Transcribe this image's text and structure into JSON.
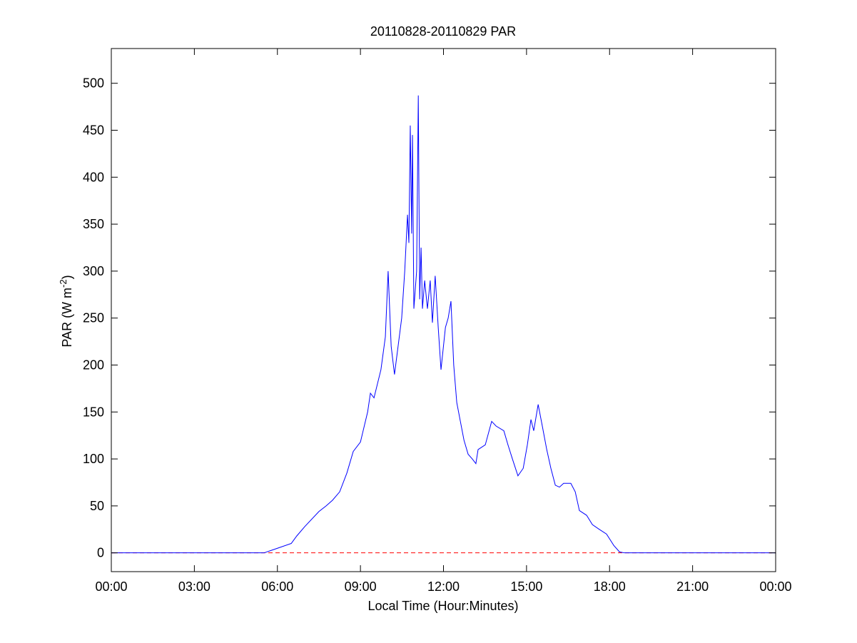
{
  "chart_data": {
    "type": "line",
    "title": "20110828-20110829 PAR",
    "xlabel": "Local Time (Hour:Minutes)",
    "ylabel": [
      "PAR (W m",
      "-2",
      ")"
    ],
    "xlim": [
      0,
      24
    ],
    "ylim": [
      -20,
      537
    ],
    "xticks": [
      {
        "value": 0,
        "label": "00:00"
      },
      {
        "value": 3,
        "label": "03:00"
      },
      {
        "value": 6,
        "label": "06:00"
      },
      {
        "value": 9,
        "label": "09:00"
      },
      {
        "value": 12,
        "label": "12:00"
      },
      {
        "value": 15,
        "label": "15:00"
      },
      {
        "value": 18,
        "label": "18:00"
      },
      {
        "value": 21,
        "label": "21:00"
      },
      {
        "value": 24,
        "label": "00:00"
      }
    ],
    "yticks": [
      0,
      50,
      100,
      150,
      200,
      250,
      300,
      350,
      400,
      450,
      500
    ],
    "reference_line": {
      "value": 0,
      "color": "#ff0000",
      "style": "dashed"
    },
    "series": [
      {
        "color": "#0000ff",
        "x": [
          0,
          5.52,
          6.01,
          6.5,
          6.7,
          6.99,
          7.5,
          7.76,
          7.99,
          8.25,
          8.51,
          8.74,
          9.0,
          9.26,
          9.36,
          9.49,
          9.74,
          9.9,
          10.0,
          10.11,
          10.23,
          10.49,
          10.6,
          10.7,
          10.75,
          10.8,
          10.85,
          10.88,
          10.93,
          10.98,
          11.03,
          11.09,
          11.14,
          11.19,
          11.24,
          11.32,
          11.42,
          11.52,
          11.6,
          11.7,
          11.81,
          11.91,
          12.07,
          12.17,
          12.27,
          12.37,
          12.48,
          12.61,
          12.74,
          12.89,
          13.04,
          13.17,
          13.25,
          13.51,
          13.74,
          13.9,
          14.18,
          14.33,
          14.49,
          14.69,
          14.88,
          15.03,
          15.16,
          15.26,
          15.42,
          15.57,
          15.73,
          15.88,
          16.04,
          16.19,
          16.34,
          16.6,
          16.76,
          16.91,
          17.17,
          17.38,
          17.63,
          17.89,
          18.15,
          18.36,
          18.54,
          24
        ],
        "values": [
          0,
          0,
          5,
          10,
          18,
          28,
          44,
          50,
          56,
          65,
          85,
          108,
          118,
          150,
          170,
          165,
          195,
          230,
          300,
          220,
          190,
          250,
          300,
          360,
          330,
          455,
          340,
          445,
          260,
          280,
          300,
          487,
          270,
          325,
          260,
          290,
          260,
          290,
          245,
          295,
          240,
          195,
          240,
          250,
          268,
          200,
          160,
          140,
          120,
          105,
          100,
          95,
          110,
          115,
          140,
          135,
          130,
          115,
          100,
          82,
          90,
          115,
          142,
          130,
          158,
          135,
          110,
          90,
          72,
          70,
          74,
          74,
          65,
          45,
          40,
          30,
          25,
          20,
          8,
          1,
          0,
          0
        ]
      }
    ]
  }
}
